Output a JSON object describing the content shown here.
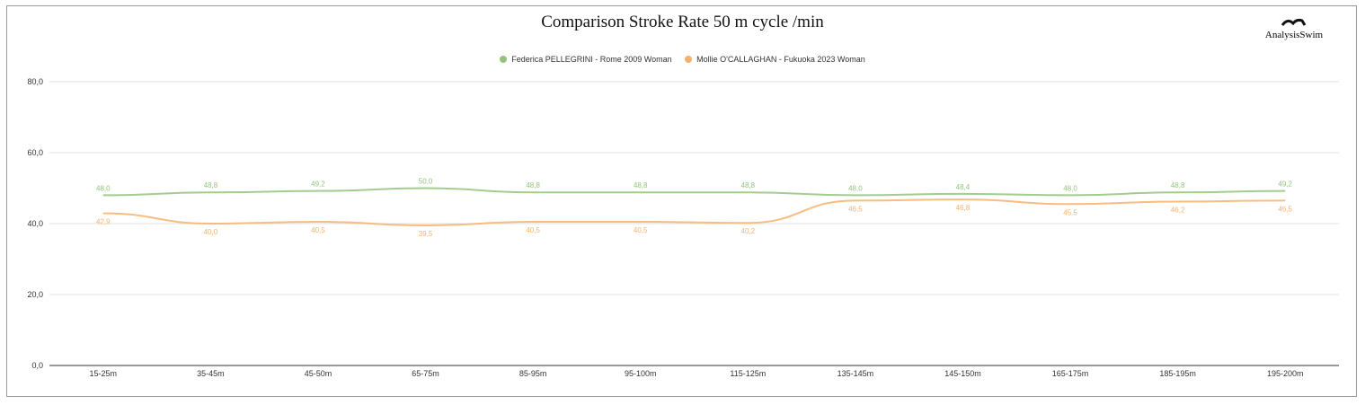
{
  "logo": "AnalysisSwim",
  "chart_data": {
    "type": "line",
    "title": "Comparison Stroke Rate 50 m cycle /min",
    "categories": [
      "15-25m",
      "35-45m",
      "45-50m",
      "65-75m",
      "85-95m",
      "95-100m",
      "115-125m",
      "135-145m",
      "145-150m",
      "165-175m",
      "185-195m",
      "195-200m"
    ],
    "series": [
      {
        "name": "Federica PELLEGRINI - Rome 2009 Woman",
        "color": "#93c47d",
        "values": [
          48.0,
          48.8,
          49.2,
          50.0,
          48.8,
          48.8,
          48.8,
          48.0,
          48.4,
          48.0,
          48.8,
          49.2
        ],
        "labels": [
          "48,0",
          "48,8",
          "49,2",
          "50,0",
          "48,8",
          "48,8",
          "48,8",
          "48,0",
          "48,4",
          "48,0",
          "48,8",
          "49,2"
        ]
      },
      {
        "name": "Mollie O'CALLAGHAN - Fukuoka 2023 Woman",
        "color": "#f6b26b",
        "values": [
          42.9,
          40.0,
          40.5,
          39.5,
          40.5,
          40.5,
          40.2,
          46.5,
          46.8,
          45.5,
          46.2,
          46.5
        ],
        "labels": [
          "42,9",
          "40,0",
          "40,5",
          "39,5",
          "40,5",
          "40,5",
          "40,2",
          "46,5",
          "46,8",
          "45,5",
          "46,2",
          "46,5"
        ]
      }
    ],
    "yticks": [
      "0,0",
      "20,0",
      "40,0",
      "60,0",
      "80,0"
    ],
    "ytick_values": [
      0,
      20,
      40,
      60,
      80
    ],
    "ylim": [
      0,
      80
    ],
    "grid": true,
    "legend": "top"
  }
}
